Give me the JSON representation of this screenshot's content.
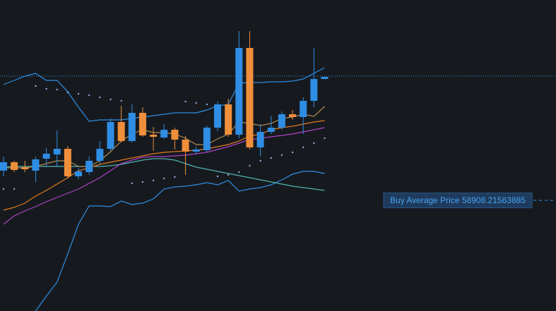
{
  "chart_data": {
    "type": "candlestick",
    "ylim": [
      57340,
      61750
    ],
    "up_color": "#2f8de4",
    "down_color": "#ef8f3b",
    "open": [
      59330,
      59450,
      59380,
      59330,
      59500,
      59560,
      59640,
      59250,
      59310,
      59470,
      59640,
      60020,
      59750,
      60150,
      59840,
      59800,
      59910,
      59770,
      59600,
      59620,
      59940,
      60270,
      59840,
      61070,
      59660,
      59880,
      59940,
      60130,
      60090,
      60320,
      60630
    ],
    "high": [
      59530,
      59470,
      59470,
      59530,
      59650,
      59900,
      59680,
      59370,
      59530,
      59750,
      60070,
      60250,
      60270,
      60230,
      59950,
      59990,
      59940,
      59820,
      59670,
      59970,
      60310,
      60350,
      61310,
      61310,
      59990,
      60110,
      60170,
      60190,
      60370,
      61070,
      60660
    ],
    "low": [
      59250,
      59310,
      59310,
      59170,
      59390,
      59390,
      59220,
      59210,
      59270,
      59430,
      59610,
      59730,
      59730,
      59810,
      59610,
      59780,
      59630,
      59270,
      59570,
      59590,
      59890,
      59810,
      59790,
      59630,
      59530,
      59850,
      59910,
      60050,
      59850,
      60230,
      60630
    ],
    "close": [
      59450,
      59340,
      59350,
      59490,
      59570,
      59640,
      59250,
      59320,
      59470,
      59640,
      60020,
      59750,
      60150,
      59830,
      59810,
      59910,
      59770,
      59600,
      59630,
      59940,
      60270,
      59840,
      61070,
      59660,
      59880,
      59940,
      60130,
      60090,
      60320,
      60630,
      60660
    ],
    "series": [
      {
        "color": "#2f8de4",
        "values": [
          60550,
          60610,
          60670,
          60710,
          60610,
          60610,
          60450,
          60230,
          60030,
          60050,
          60050,
          60050,
          60070,
          60090,
          60110,
          60130,
          60150,
          60150,
          60150,
          60190,
          60250,
          60270,
          60570,
          60580,
          60580,
          60590,
          60590,
          60600,
          60630,
          60710,
          60790
        ]
      },
      {
        "color": "#2f8de4",
        "values": [
          null,
          null,
          null,
          57340,
          57550,
          57750,
          58150,
          58570,
          58830,
          58830,
          58820,
          58900,
          58850,
          58870,
          58930,
          59070,
          59100,
          59110,
          59130,
          59160,
          59130,
          59190,
          59040,
          59070,
          59090,
          59130,
          59200,
          59280,
          59320,
          59320,
          59290
        ]
      },
      {
        "color": "#4fb3b0",
        "values": [
          59380,
          59390,
          59390,
          59390,
          59390,
          59390,
          59390,
          59390,
          59390,
          59390,
          59400,
          59420,
          59450,
          59480,
          59500,
          59500,
          59480,
          59430,
          59380,
          59350,
          59320,
          59290,
          59260,
          59230,
          59200,
          59170,
          59140,
          59110,
          59090,
          59070,
          59050
        ]
      },
      {
        "color": "#e07a1f",
        "values": [
          58770,
          58810,
          58870,
          58970,
          59050,
          59140,
          59230,
          59330,
          59370,
          59420,
          59450,
          59480,
          59510,
          59540,
          59570,
          59590,
          59600,
          59610,
          59620,
          59640,
          59670,
          59700,
          59750,
          59820,
          59850,
          59910,
          59940,
          59960,
          59990,
          60020,
          60040
        ]
      },
      {
        "color": "#b040c8",
        "values": [
          58570,
          58690,
          58760,
          58820,
          58890,
          58950,
          59010,
          59070,
          59150,
          59230,
          59330,
          59430,
          59480,
          59520,
          59530,
          59530,
          59540,
          59550,
          59570,
          59590,
          59630,
          59670,
          59720,
          59770,
          59790,
          59810,
          59830,
          59850,
          59880,
          59910,
          59940
        ]
      },
      {
        "color": "#b08a50",
        "values": [
          59370,
          59370,
          59370,
          59390,
          59430,
          59470,
          59470,
          59390,
          59390,
          59470,
          59600,
          59750,
          59850,
          59910,
          59870,
          59870,
          59850,
          59790,
          59700,
          59700,
          59780,
          59850,
          60020,
          60000,
          59970,
          60000,
          60070,
          60090,
          60130,
          60100,
          60240
        ]
      }
    ],
    "sar": {
      "color": "#8fb0d8",
      "values": [
        59070,
        59070,
        null,
        60530,
        60490,
        60480,
        60440,
        60420,
        60400,
        60370,
        60340,
        60320,
        59150,
        59170,
        59190,
        59220,
        59240,
        60310,
        60290,
        60270,
        59250,
        59270,
        59310,
        59400,
        59470,
        59510,
        59550,
        59590,
        59660,
        59720,
        59790
      ]
    },
    "price_line": 60670,
    "buy_average": {
      "label": "Buy Average Price",
      "value": 58908.21563885
    }
  }
}
